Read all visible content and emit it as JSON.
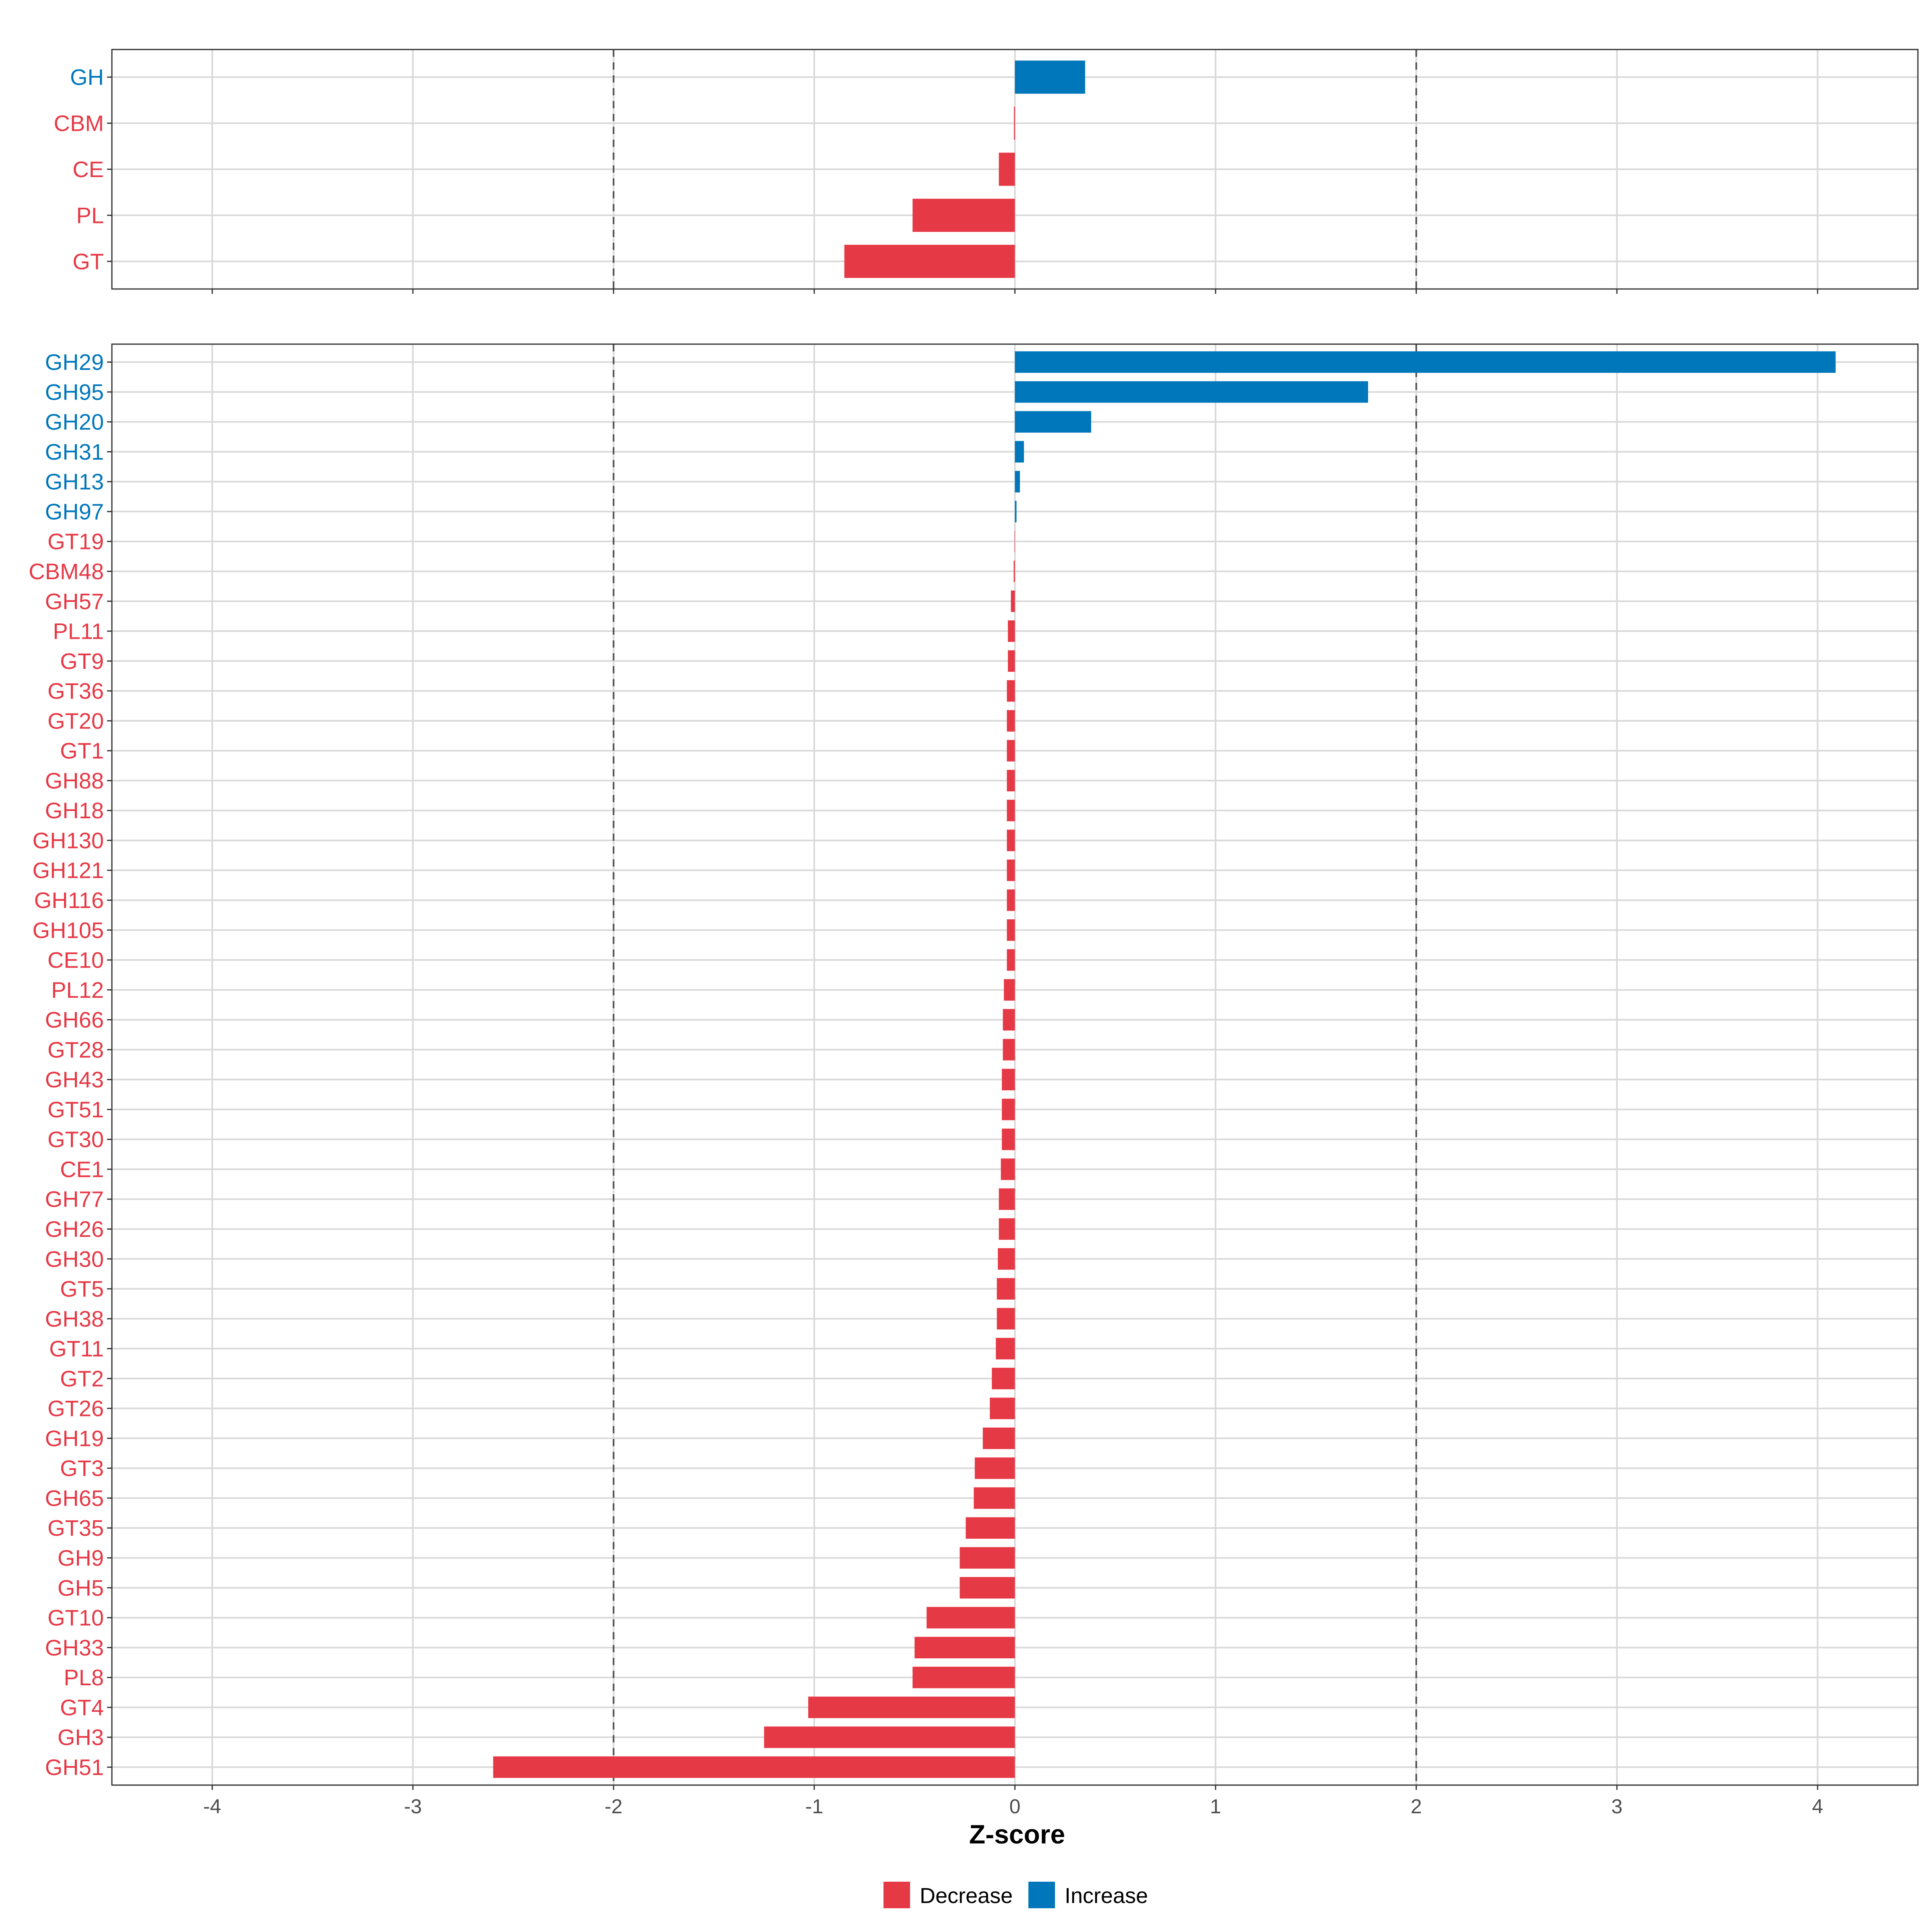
{
  "colors": {
    "Decrease": "#e63946",
    "Increase": "#0077bb"
  },
  "chart_data": [
    {
      "type": "bar",
      "orientation": "horizontal",
      "panel": "top",
      "categories": [
        "GH",
        "CBM",
        "CE",
        "PL",
        "GT"
      ],
      "values": [
        0.35,
        -0.005,
        -0.08,
        -0.51,
        -0.85
      ],
      "xlim": [
        -4.5,
        4.5
      ],
      "reference_lines": [
        -2,
        2
      ]
    },
    {
      "type": "bar",
      "orientation": "horizontal",
      "panel": "bottom",
      "categories": [
        "GH29",
        "GH95",
        "GH20",
        "GH31",
        "GH13",
        "GH97",
        "GT19",
        "CBM48",
        "GH57",
        "PL11",
        "GT9",
        "GT36",
        "GT20",
        "GT1",
        "GH88",
        "GH18",
        "GH130",
        "GH121",
        "GH116",
        "GH105",
        "CE10",
        "PL12",
        "GH66",
        "GT28",
        "GH43",
        "GT51",
        "GT30",
        "CE1",
        "GH77",
        "GH26",
        "GH30",
        "GT5",
        "GH38",
        "GT11",
        "GT2",
        "GT26",
        "GH19",
        "GT3",
        "GH65",
        "GT35",
        "GH9",
        "GH5",
        "GT10",
        "GH33",
        "PL8",
        "GT4",
        "GH3",
        "GH51"
      ],
      "values": [
        4.09,
        1.76,
        0.38,
        0.045,
        0.025,
        0.008,
        -0.002,
        -0.006,
        -0.02,
        -0.035,
        -0.035,
        -0.04,
        -0.04,
        -0.04,
        -0.04,
        -0.04,
        -0.04,
        -0.04,
        -0.04,
        -0.04,
        -0.04,
        -0.055,
        -0.06,
        -0.06,
        -0.065,
        -0.065,
        -0.065,
        -0.07,
        -0.08,
        -0.08,
        -0.085,
        -0.09,
        -0.09,
        -0.095,
        -0.115,
        -0.125,
        -0.16,
        -0.2,
        -0.205,
        -0.245,
        -0.275,
        -0.275,
        -0.44,
        -0.5,
        -0.51,
        -1.03,
        -1.25,
        -2.6
      ],
      "xlim": [
        -4.5,
        4.5
      ],
      "xticks": [
        -4,
        -3,
        -2,
        -1,
        0,
        1,
        2,
        3,
        4
      ],
      "xticklabels": [
        "-4",
        "-3",
        "-2",
        "-1",
        "0",
        "1",
        "2",
        "3",
        "4"
      ],
      "xlabel": "Z-score",
      "reference_lines": [
        -2,
        2
      ]
    }
  ],
  "legend": {
    "position": "bottom",
    "items": [
      {
        "label": "Decrease",
        "color": "#e63946"
      },
      {
        "label": "Increase",
        "color": "#0077bb"
      }
    ]
  }
}
